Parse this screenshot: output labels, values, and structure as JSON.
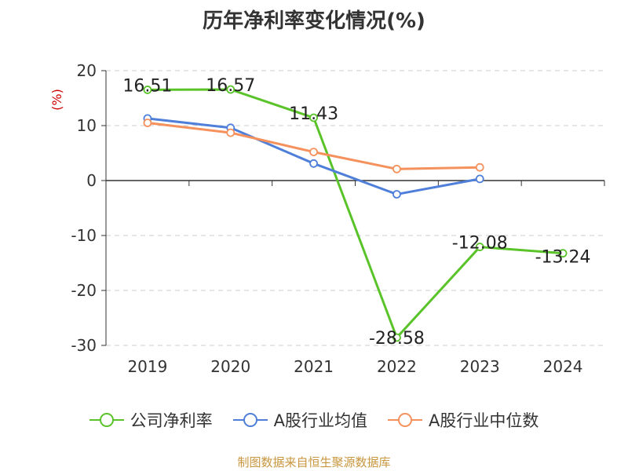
{
  "chart_data": {
    "type": "line",
    "title": "历年净利率变化情况(%)",
    "ylabel": "(%)",
    "xlabel": "",
    "categories": [
      "2019",
      "2020",
      "2021",
      "2022",
      "2023",
      "2024"
    ],
    "ylim": [
      -30,
      20
    ],
    "yticks": [
      20,
      10,
      0,
      -10,
      -20,
      -30
    ],
    "grid": true,
    "legend_position": "bottom",
    "series": [
      {
        "name": "公司净利率",
        "color": "#5ac32a",
        "values": [
          16.51,
          16.57,
          11.43,
          -28.58,
          -12.08,
          -13.24
        ],
        "labels": [
          "16.51",
          "16.57",
          "11.43",
          "-28.58",
          "-12.08",
          "-13.24"
        ]
      },
      {
        "name": "A股行业均值",
        "color": "#4f7fd9",
        "values": [
          11.3,
          9.6,
          3.1,
          -2.5,
          0.3,
          null
        ]
      },
      {
        "name": "A股行业中位数",
        "color": "#f5915c",
        "values": [
          10.5,
          8.7,
          5.2,
          2.1,
          2.4,
          null
        ]
      }
    ]
  },
  "source_text": "制图数据来自恒生聚源数据库"
}
